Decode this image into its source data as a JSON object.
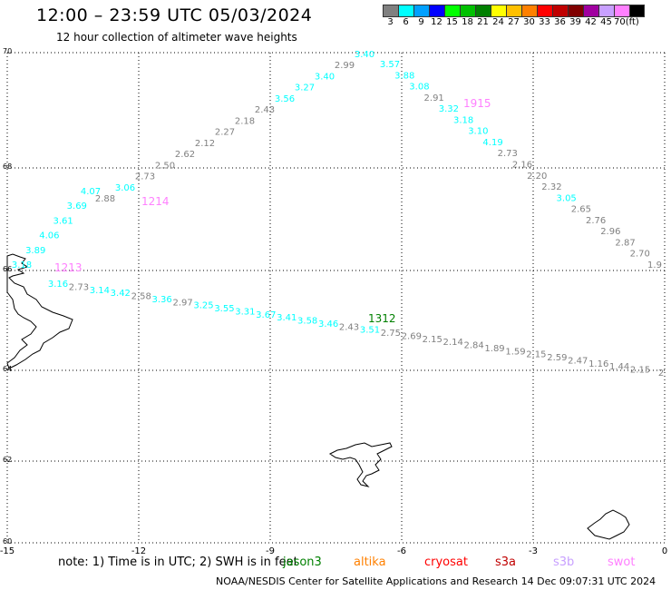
{
  "title": "12:00 – 23:59 UTC 05/03/2024",
  "subtitle": "12 hour collection of altimeter wave heights",
  "legend": {
    "unit": "(ft)",
    "entries": [
      {
        "label": "3",
        "color": "#808080"
      },
      {
        "label": "6",
        "color": "#00ffff"
      },
      {
        "label": "9",
        "color": "#00a0ff"
      },
      {
        "label": "12",
        "color": "#0000ff"
      },
      {
        "label": "15",
        "color": "#00ff00"
      },
      {
        "label": "18",
        "color": "#00c000"
      },
      {
        "label": "21",
        "color": "#008000"
      },
      {
        "label": "24",
        "color": "#ffff00"
      },
      {
        "label": "27",
        "color": "#ffc000"
      },
      {
        "label": "30",
        "color": "#ff8000"
      },
      {
        "label": "33",
        "color": "#ff0000"
      },
      {
        "label": "36",
        "color": "#c00000"
      },
      {
        "label": "39",
        "color": "#800000"
      },
      {
        "label": "42",
        "color": "#a000a0"
      },
      {
        "label": "45",
        "color": "#c8a0ff"
      },
      {
        "label": "70",
        "color": "#ff80ff"
      },
      {
        "label": "",
        "color": "#000000"
      }
    ]
  },
  "axes": {
    "lon_labels": [
      "-15",
      "-12",
      "-9",
      "-6",
      "-3",
      "0"
    ],
    "lat_labels": [
      "60",
      "62",
      "64",
      "66",
      "68",
      "70"
    ]
  },
  "tracks": [
    {
      "time": "1213",
      "time_color": "#ff80ff",
      "points": [
        {
          "v": "3.18",
          "c": "#00ffff"
        },
        {
          "v": "3.89",
          "c": "#00ffff"
        },
        {
          "v": "4.06",
          "c": "#00ffff"
        },
        {
          "v": "3.61",
          "c": "#00ffff"
        },
        {
          "v": "3.69",
          "c": "#00ffff"
        },
        {
          "v": "4.07",
          "c": "#00ffff"
        }
      ]
    },
    {
      "time": "1214",
      "time_color": "#ff80ff",
      "points": [
        {
          "v": "2.88",
          "c": "#808080"
        },
        {
          "v": "3.06",
          "c": "#00ffff"
        },
        {
          "v": "2.73",
          "c": "#808080"
        },
        {
          "v": "2.50",
          "c": "#808080"
        },
        {
          "v": "2.62",
          "c": "#808080"
        },
        {
          "v": "2.12",
          "c": "#808080"
        },
        {
          "v": "2.27",
          "c": "#808080"
        },
        {
          "v": "2.18",
          "c": "#808080"
        },
        {
          "v": "2.43",
          "c": "#808080"
        },
        {
          "v": "3.56",
          "c": "#00ffff"
        },
        {
          "v": "3.27",
          "c": "#00ffff"
        },
        {
          "v": "3.40",
          "c": "#00ffff"
        },
        {
          "v": "2.99",
          "c": "#808080"
        },
        {
          "v": "3.40",
          "c": "#00ffff"
        }
      ]
    },
    {
      "time": "1915",
      "time_color": "#ff80ff",
      "points": [
        {
          "v": "3.57",
          "c": "#00ffff"
        },
        {
          "v": "3.88",
          "c": "#00ffff"
        },
        {
          "v": "3.08",
          "c": "#00ffff"
        },
        {
          "v": "2.91",
          "c": "#808080"
        },
        {
          "v": "3.32",
          "c": "#00ffff"
        },
        {
          "v": "3.18",
          "c": "#00ffff"
        },
        {
          "v": "3.10",
          "c": "#00ffff"
        },
        {
          "v": "4.19",
          "c": "#00ffff"
        },
        {
          "v": "2.73",
          "c": "#808080"
        },
        {
          "v": "2.16",
          "c": "#808080"
        },
        {
          "v": "2.20",
          "c": "#808080"
        },
        {
          "v": "2.32",
          "c": "#808080"
        },
        {
          "v": "3.05",
          "c": "#00ffff"
        },
        {
          "v": "2.65",
          "c": "#808080"
        },
        {
          "v": "2.76",
          "c": "#808080"
        },
        {
          "v": "2.96",
          "c": "#808080"
        },
        {
          "v": "2.87",
          "c": "#808080"
        },
        {
          "v": "2.70",
          "c": "#808080"
        },
        {
          "v": "1.9",
          "c": "#808080"
        }
      ]
    },
    {
      "time": "1312",
      "time_color": "#008000",
      "points": [
        {
          "v": "3.16",
          "c": "#00ffff"
        },
        {
          "v": "2.73",
          "c": "#808080"
        },
        {
          "v": "3.14",
          "c": "#00ffff"
        },
        {
          "v": "3.42",
          "c": "#00ffff"
        },
        {
          "v": "2.58",
          "c": "#808080"
        },
        {
          "v": "3.36",
          "c": "#00ffff"
        },
        {
          "v": "2.97",
          "c": "#808080"
        },
        {
          "v": "3.25",
          "c": "#00ffff"
        },
        {
          "v": "3.55",
          "c": "#00ffff"
        },
        {
          "v": "3.31",
          "c": "#00ffff"
        },
        {
          "v": "3.67",
          "c": "#00ffff"
        },
        {
          "v": "3.41",
          "c": "#00ffff"
        },
        {
          "v": "3.58",
          "c": "#00ffff"
        },
        {
          "v": "3.46",
          "c": "#00ffff"
        },
        {
          "v": "2.43",
          "c": "#808080"
        },
        {
          "v": "3.51",
          "c": "#00ffff"
        },
        {
          "v": "2.75",
          "c": "#808080"
        },
        {
          "v": "2.69",
          "c": "#808080"
        },
        {
          "v": "2.15",
          "c": "#808080"
        },
        {
          "v": "2.14",
          "c": "#808080"
        },
        {
          "v": "2.84",
          "c": "#808080"
        },
        {
          "v": "1.89",
          "c": "#808080"
        },
        {
          "v": "1.59",
          "c": "#808080"
        },
        {
          "v": "2.15",
          "c": "#808080"
        },
        {
          "v": "2.59",
          "c": "#808080"
        },
        {
          "v": "2.47",
          "c": "#808080"
        },
        {
          "v": "1.16",
          "c": "#808080"
        },
        {
          "v": "1.44",
          "c": "#808080"
        },
        {
          "v": "2.15",
          "c": "#808080"
        },
        {
          "v": "2",
          "c": "#808080"
        }
      ]
    }
  ],
  "note": "note:  1) Time is in UTC; 2) SWH is in feet",
  "satellites": [
    {
      "name": "jason3",
      "color": "#008000"
    },
    {
      "name": "altika",
      "color": "#ff8000"
    },
    {
      "name": "cryosat",
      "color": "#ff0000"
    },
    {
      "name": "s3a",
      "color": "#c00000"
    },
    {
      "name": "s3b",
      "color": "#c8a0ff"
    },
    {
      "name": "swot",
      "color": "#ff80ff"
    }
  ],
  "footer": "NOAA/NESDIS Center for Satellite Applications and Research    14 Dec 09:07:31 UTC 2024"
}
